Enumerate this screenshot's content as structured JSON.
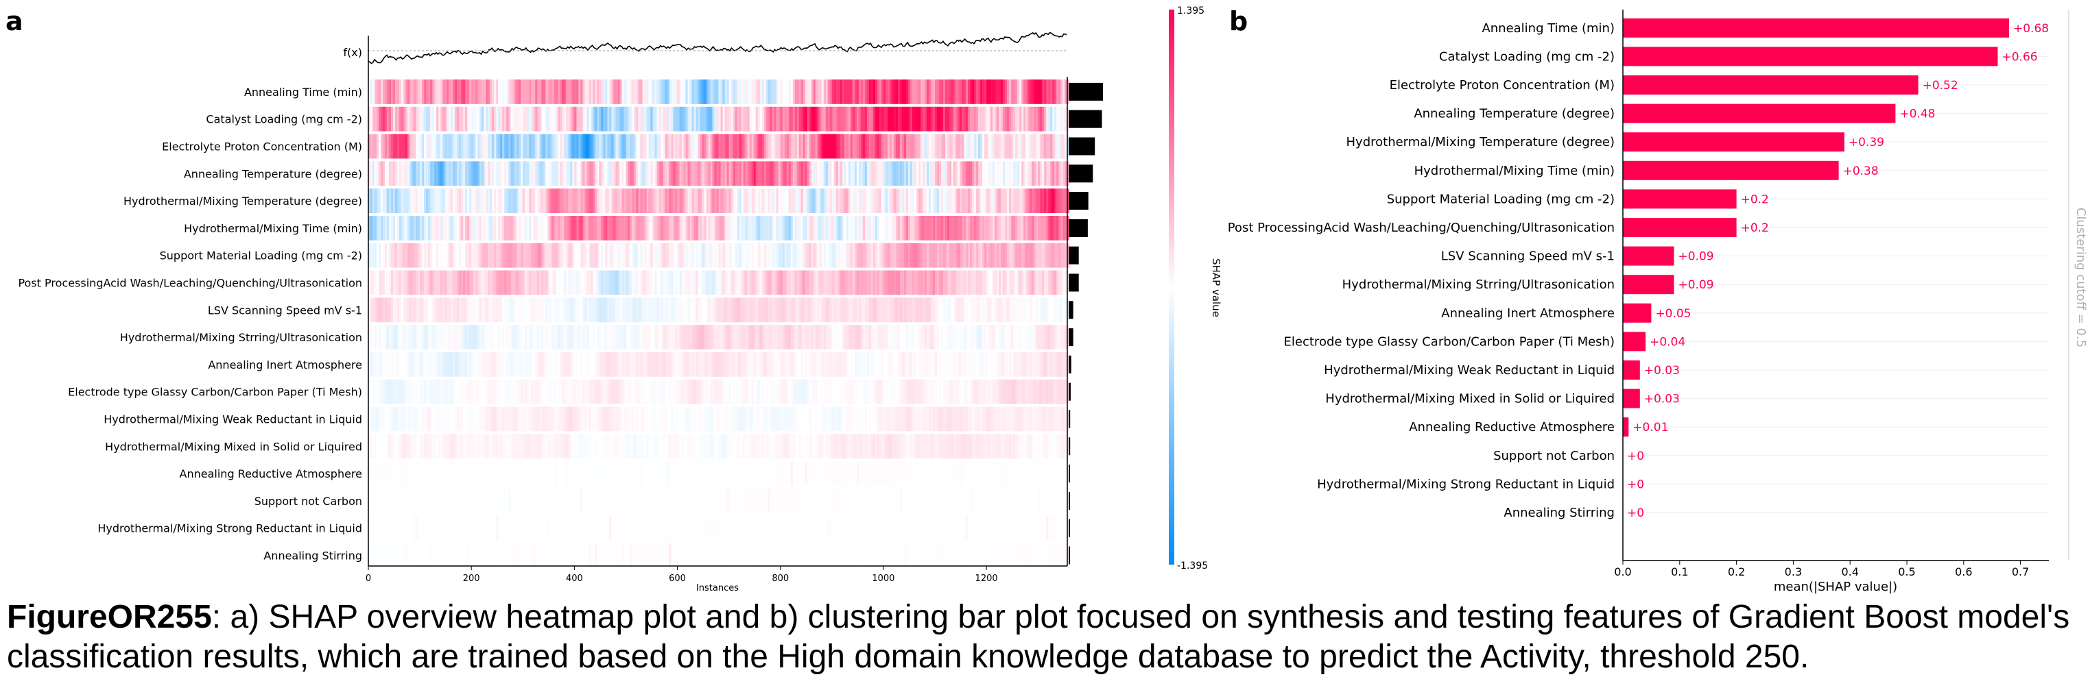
{
  "panels": {
    "a": "a",
    "b": "b"
  },
  "caption": {
    "figure_id": "FigureOR255",
    "text": ": a) SHAP overview heatmap plot and b) clustering bar plot focused on synthesis and testing features of Gradient Boost model's classification results, which are trained based on the High domain knowledge database to predict the Activity, threshold 250."
  },
  "chart_data": [
    {
      "type": "heatmap",
      "panel": "a",
      "fx_label": "f(x)",
      "xlabel": "Instances",
      "x_ticks": [
        0,
        200,
        400,
        600,
        800,
        1000,
        1200
      ],
      "xlim": [
        0,
        1357
      ],
      "n_instances": 1357,
      "colorbar": {
        "label": "SHAP value",
        "max": 1.395,
        "min": -1.395,
        "max_label": "1.395",
        "min_label": "-1.395",
        "low_color": "#008bfb",
        "high_color": "#ff0051"
      },
      "features": [
        "Annealing Time (min)",
        "Catalyst Loading (mg cm -2)",
        "Electrolyte Proton Concentration (M)",
        "Annealing Temperature (degree)",
        "Hydrothermal/Mixing Temperature (degree)",
        "Hydrothermal/Mixing Time (min)",
        "Support Material Loading (mg cm -2)",
        "Post ProcessingAcid Wash/Leaching/Quenching/Ultrasonication",
        "LSV Scanning Speed mV s-1",
        "Hydrothermal/Mixing Strring/Ultrasonication",
        "Annealing Inert Atmosphere",
        "Electrode type Glassy Carbon/Carbon Paper (Ti Mesh)",
        "Hydrothermal/Mixing Weak Reductant in Liquid",
        "Hydrothermal/Mixing Mixed in Solid or Liquired",
        "Annealing Reductive Atmosphere",
        "Support not Carbon",
        "Hydrothermal/Mixing Strong Reductant in Liquid",
        "Annealing Stirring"
      ],
      "importance": [
        0.68,
        0.66,
        0.52,
        0.48,
        0.39,
        0.38,
        0.2,
        0.2,
        0.09,
        0.09,
        0.05,
        0.04,
        0.03,
        0.03,
        0.01,
        0.0,
        0.0,
        0.0
      ],
      "bar_color": "#000000"
    },
    {
      "type": "bar",
      "orientation": "horizontal",
      "panel": "b",
      "categories": [
        "Annealing Time (min)",
        "Catalyst Loading (mg cm -2)",
        "Electrolyte Proton Concentration (M)",
        "Annealing Temperature (degree)",
        "Hydrothermal/Mixing Temperature (degree)",
        "Hydrothermal/Mixing Time (min)",
        "Support Material Loading (mg cm -2)",
        "Post ProcessingAcid Wash/Leaching/Quenching/Ultrasonication",
        "LSV Scanning Speed mV s-1",
        "Hydrothermal/Mixing Strring/Ultrasonication",
        "Annealing Inert Atmosphere",
        "Electrode type Glassy Carbon/Carbon Paper (Ti Mesh)",
        "Hydrothermal/Mixing Weak Reductant in Liquid",
        "Hydrothermal/Mixing Mixed in Solid or Liquired",
        "Annealing Reductive Atmosphere",
        "Support not Carbon",
        "Hydrothermal/Mixing Strong Reductant in Liquid",
        "Annealing Stirring"
      ],
      "values": [
        0.68,
        0.66,
        0.52,
        0.48,
        0.39,
        0.38,
        0.2,
        0.2,
        0.09,
        0.09,
        0.05,
        0.04,
        0.03,
        0.03,
        0.01,
        0.0,
        0.0,
        0.0
      ],
      "value_labels": [
        "+0.68",
        "+0.66",
        "+0.52",
        "+0.48",
        "+0.39",
        "+0.38",
        "+0.2",
        "+0.2",
        "+0.09",
        "+0.09",
        "+0.05",
        "+0.04",
        "+0.03",
        "+0.03",
        "+0.01",
        "+0",
        "+0",
        "+0"
      ],
      "xlabel": "mean(|SHAP value|)",
      "x_ticks": [
        0.0,
        0.1,
        0.2,
        0.3,
        0.4,
        0.5,
        0.6,
        0.7
      ],
      "x_tick_labels": [
        "0.0",
        "0.1",
        "0.2",
        "0.3",
        "0.4",
        "0.5",
        "0.6",
        "0.7"
      ],
      "xlim": [
        0,
        0.75
      ],
      "bar_color": "#ff0051",
      "side_label": "Clustering cutoff = 0.5"
    }
  ]
}
